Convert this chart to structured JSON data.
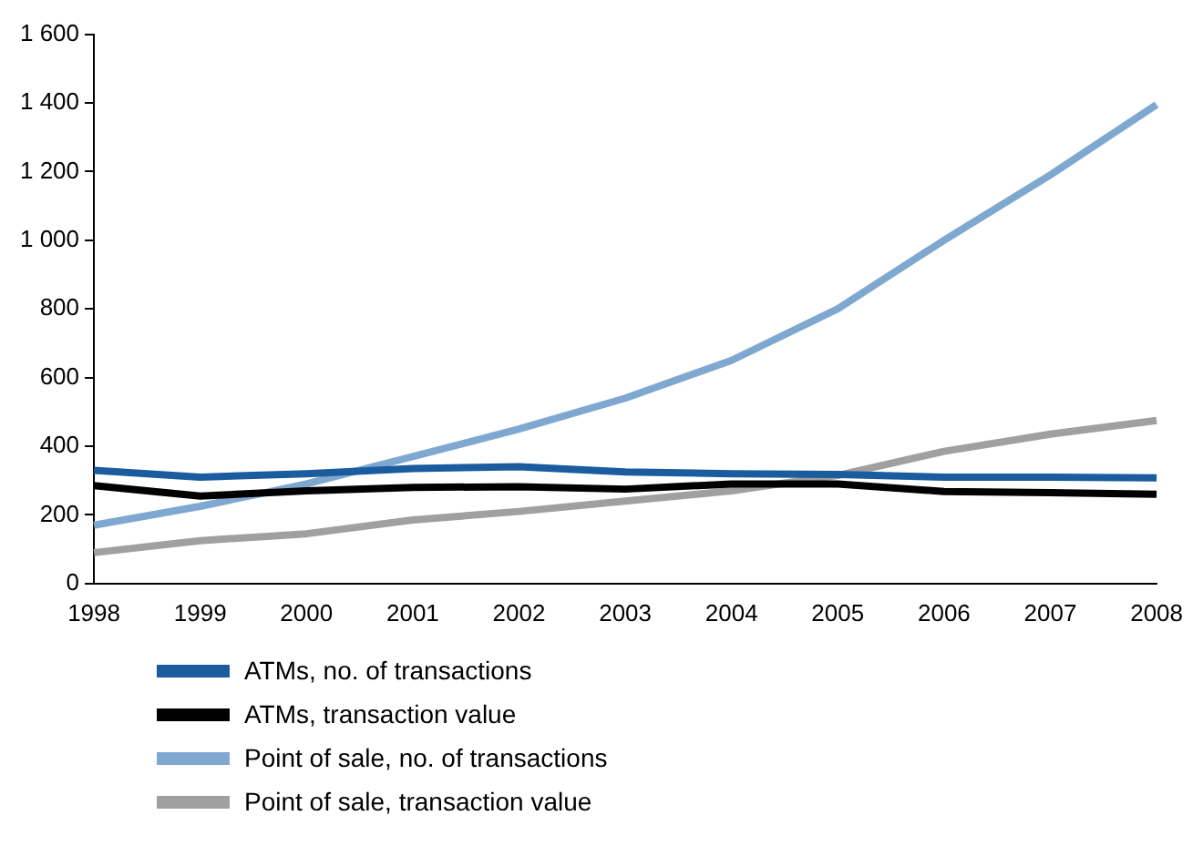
{
  "chart_data": {
    "type": "line",
    "categories": [
      "1998",
      "1999",
      "2000",
      "2001",
      "2002",
      "2003",
      "2004",
      "2005",
      "2006",
      "2007",
      "2008"
    ],
    "series": [
      {
        "name": "ATMs, no. of transactions",
        "color": "#1a5c9e",
        "values": [
          330,
          310,
          320,
          335,
          340,
          325,
          320,
          318,
          310,
          310,
          308
        ]
      },
      {
        "name": "ATMs, transaction value",
        "color": "#000000",
        "values": [
          285,
          255,
          270,
          280,
          282,
          275,
          290,
          290,
          268,
          265,
          260
        ]
      },
      {
        "name": "Point of sale, no. of transactions",
        "color": "#7fa8d0",
        "values": [
          170,
          225,
          290,
          370,
          450,
          540,
          650,
          800,
          1000,
          1190,
          1395
        ]
      },
      {
        "name": "Point of sale, transaction value",
        "color": "#a0a0a0",
        "values": [
          90,
          125,
          145,
          185,
          210,
          240,
          270,
          315,
          385,
          435,
          475
        ]
      }
    ],
    "ylim": [
      0,
      1600
    ],
    "yticks": [
      0,
      200,
      400,
      600,
      800,
      {
        "value": 1000,
        "label": "1 000"
      },
      {
        "value": 1200,
        "label": "1 200"
      },
      {
        "value": 1400,
        "label": "1 400"
      },
      {
        "value": 1600,
        "label": "1 600"
      }
    ],
    "grid": false,
    "legend": "bottom",
    "marker": "none",
    "line_style": "solid"
  }
}
